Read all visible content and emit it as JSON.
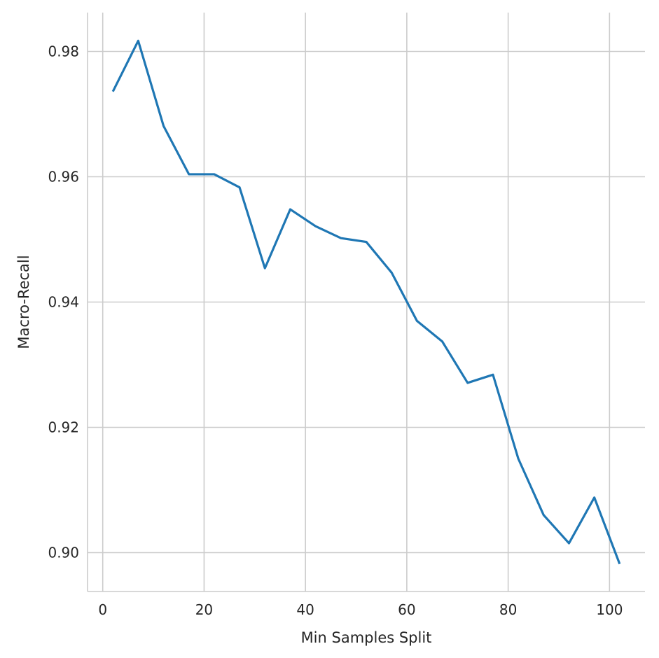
{
  "chart_data": {
    "type": "line",
    "title": "",
    "xlabel": "Min Samples Split",
    "ylabel": "Macro-Recall",
    "xlim": [
      -3,
      107
    ],
    "ylim": [
      0.8938,
      0.9862
    ],
    "xticks": [
      0,
      20,
      40,
      60,
      80,
      100
    ],
    "xtick_labels": [
      "0",
      "20",
      "40",
      "60",
      "80",
      "100"
    ],
    "yticks": [
      0.9,
      0.92,
      0.94,
      0.96,
      0.98
    ],
    "ytick_labels": [
      "0.90",
      "0.92",
      "0.94",
      "0.96",
      "0.98"
    ],
    "grid": true,
    "series": [
      {
        "color": "#1f77b4",
        "x": [
          2,
          7,
          12,
          17,
          22,
          27,
          32,
          37,
          42,
          47,
          52,
          57,
          62,
          67,
          72,
          77,
          82,
          87,
          92,
          97,
          102
        ],
        "y": [
          0.9736,
          0.9817,
          0.9681,
          0.9604,
          0.9604,
          0.9583,
          0.9454,
          0.9548,
          0.9521,
          0.9502,
          0.9496,
          0.9447,
          0.937,
          0.9337,
          0.9271,
          0.9284,
          0.915,
          0.906,
          0.9015,
          0.9088,
          0.8982
        ]
      }
    ]
  }
}
